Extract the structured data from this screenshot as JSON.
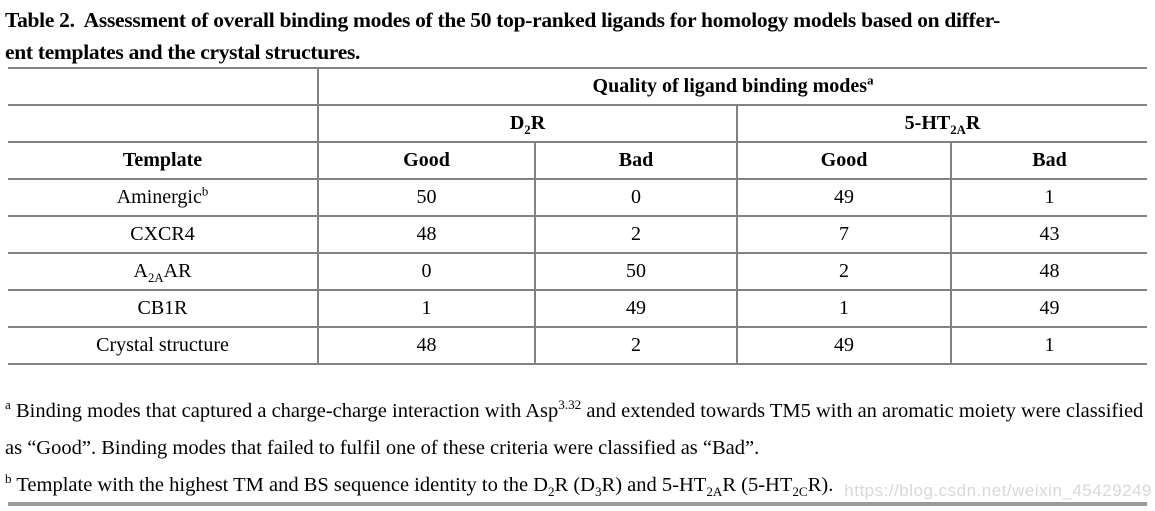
{
  "caption": {
    "line1": "Table 2.  Assessment of overall binding modes of the 50 top-ranked ligands for homology models based on differ-",
    "line2": "ent templates and the crystal structures."
  },
  "table": {
    "header": {
      "quality_title_html": "Quality of ligand binding modes<sup>a</sup>",
      "group1_html": "D<sub>2</sub>R",
      "group2_html": "5-HT<sub>2A</sub>R",
      "col_template": "Template",
      "col_good1": "Good",
      "col_bad1": "Bad",
      "col_good2": "Good",
      "col_bad2": "Bad"
    },
    "rows": [
      {
        "template_html": "Aminergic<sup>b</sup>",
        "values": [
          "50",
          "0",
          "49",
          "1"
        ]
      },
      {
        "template_html": "CXCR4",
        "values": [
          "48",
          "2",
          "7",
          "43"
        ]
      },
      {
        "template_html": "A<sub>2A</sub>AR",
        "values": [
          "0",
          "50",
          "2",
          "48"
        ]
      },
      {
        "template_html": "CB1R",
        "values": [
          "1",
          "49",
          "1",
          "49"
        ]
      },
      {
        "template_html": "Crystal structure",
        "values": [
          "48",
          "2",
          "49",
          "1"
        ]
      }
    ]
  },
  "footnotes": {
    "a_html": "<sup>a</sup> Binding modes that captured a charge-charge interaction with Asp<sup>3.32</sup> and extended towards TM5 with an aromatic moiety were classified as “Good”. Binding modes that failed to fulfil one of these criteria were classified as “Bad”.",
    "b_html": "<sup>b</sup> Template with the highest TM and BS sequence identity to the D<sub>2</sub>R (D<sub>3</sub>R) and 5-HT<sub>2A</sub>R (5-HT<sub>2C</sub>R)."
  },
  "watermark": "https://blog.csdn.net/weixin_45429249",
  "colors": {
    "table_border": "#828282",
    "bottom_rule": "#9b9b9b",
    "watermark_text": "#dbd7d7",
    "text": "#000000",
    "background": "#ffffff"
  }
}
